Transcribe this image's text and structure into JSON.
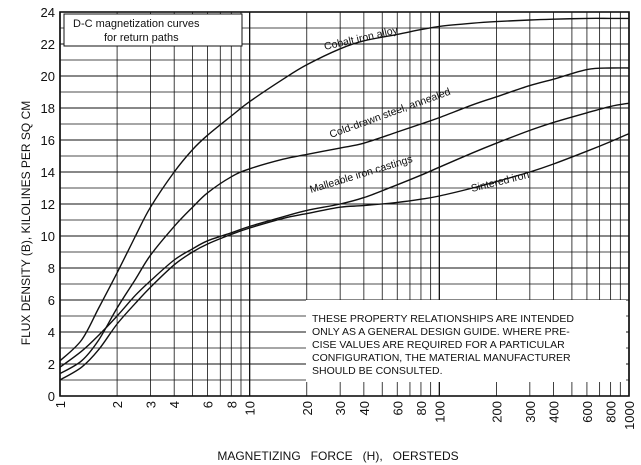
{
  "chart_data": {
    "type": "line",
    "title": "D-C magnetization curves for return paths",
    "title_lines": [
      "D-C magnetization curves",
      "for return paths"
    ],
    "xlabel": "MAGNETIZING   FORCE   (H),   OERSTEDS",
    "ylabel": "FLUX DENSITY (B), KILOLINES PER SQ CM",
    "xscale": "log",
    "xlim": [
      1,
      1000
    ],
    "ylim": [
      0,
      24
    ],
    "x_ticks": [
      "1",
      "2",
      "3",
      "4",
      "6",
      "8",
      "10",
      "20",
      "30",
      "40",
      "60",
      "80",
      "100",
      "200",
      "300",
      "400",
      "600",
      "800",
      "1000"
    ],
    "y_ticks": [
      "0",
      "2",
      "4",
      "6",
      "8",
      "10",
      "12",
      "14",
      "16",
      "18",
      "20",
      "22",
      "24"
    ],
    "grid": true,
    "series": [
      {
        "name": "Cobalt iron alloy",
        "x": [
          1,
          1.3,
          1.6,
          2,
          2.5,
          3,
          4,
          5,
          6,
          8,
          10,
          15,
          20,
          30,
          40,
          60,
          80,
          100,
          150,
          200,
          300,
          400,
          600,
          800,
          1000
        ],
        "y": [
          2.2,
          3.5,
          5.5,
          7.7,
          10.0,
          11.8,
          14.0,
          15.4,
          16.3,
          17.5,
          18.4,
          19.8,
          20.7,
          21.7,
          22.2,
          22.6,
          22.9,
          23.1,
          23.3,
          23.4,
          23.5,
          23.55,
          23.6,
          23.6,
          23.6
        ]
      },
      {
        "name": "Cold-drawn steel, annealed",
        "x": [
          1,
          1.3,
          1.6,
          2,
          2.5,
          3,
          4,
          5,
          6,
          8,
          10,
          15,
          20,
          30,
          40,
          60,
          80,
          100,
          150,
          200,
          300,
          400,
          600,
          800,
          1000
        ],
        "y": [
          1.4,
          2.2,
          3.5,
          5.5,
          7.3,
          8.8,
          10.6,
          11.8,
          12.7,
          13.7,
          14.2,
          14.8,
          15.1,
          15.5,
          15.8,
          16.5,
          17.0,
          17.4,
          18.2,
          18.7,
          19.4,
          19.8,
          20.4,
          20.5,
          20.5
        ]
      },
      {
        "name": "Malleable iron castings",
        "x": [
          1,
          1.3,
          1.6,
          2,
          2.5,
          3,
          4,
          5,
          6,
          8,
          10,
          15,
          20,
          30,
          40,
          60,
          80,
          100,
          150,
          200,
          300,
          400,
          600,
          800,
          1000
        ],
        "y": [
          1.8,
          2.8,
          3.8,
          5.0,
          6.3,
          7.2,
          8.5,
          9.2,
          9.7,
          10.2,
          10.6,
          11.2,
          11.6,
          12.0,
          12.4,
          13.2,
          13.8,
          14.3,
          15.2,
          15.8,
          16.6,
          17.1,
          17.7,
          18.1,
          18.3
        ]
      },
      {
        "name": "Sintered iron",
        "x": [
          1,
          1.3,
          1.6,
          2,
          2.5,
          3,
          4,
          5,
          6,
          8,
          10,
          15,
          20,
          30,
          40,
          60,
          80,
          100,
          150,
          200,
          300,
          400,
          600,
          800,
          1000
        ],
        "y": [
          1.0,
          1.8,
          2.9,
          4.5,
          5.8,
          6.8,
          8.2,
          9.0,
          9.5,
          10.1,
          10.5,
          11.1,
          11.4,
          11.8,
          11.9,
          12.1,
          12.3,
          12.5,
          13.0,
          13.4,
          14.0,
          14.5,
          15.3,
          15.9,
          16.4
        ]
      }
    ],
    "note_lines": [
      "THESE PROPERTY RELATIONSHIPS ARE INTENDED",
      "ONLY AS A GENERAL DESIGN GUIDE. WHERE PRE-",
      "CISE VALUES ARE REQUIRED FOR A PARTICULAR",
      "CONFIGURATION, THE MATERIAL MANUFACTURER",
      "SHOULD BE CONSULTED."
    ],
    "colors": {
      "line": "#111111",
      "grid": "#111111",
      "background": "#ffffff"
    }
  }
}
